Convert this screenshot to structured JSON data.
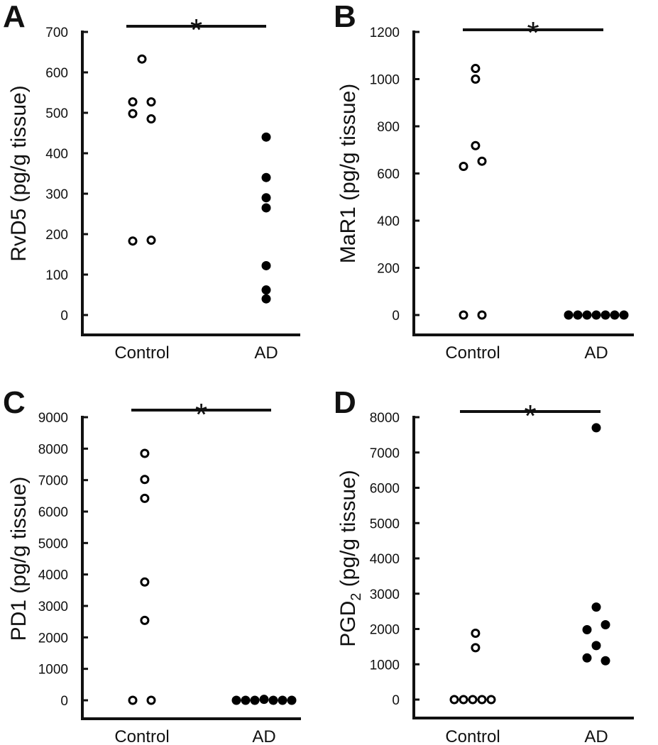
{
  "chart_data": [
    {
      "type": "scatter",
      "panel": "A",
      "ylabel": {
        "main": "RvD5 (pg/g tissue)",
        "sub": "",
        "tail": ""
      },
      "categories": [
        "Control",
        "AD"
      ],
      "ylim": [
        0,
        700
      ],
      "yticks": [
        0,
        100,
        200,
        300,
        400,
        500,
        600,
        700
      ],
      "significance": "*",
      "series": [
        {
          "name": "Control",
          "marker": "open",
          "points": [
            {
              "x": 0,
              "offset": 0,
              "y": 633
            },
            {
              "x": 0,
              "offset": -1,
              "y": 527
            },
            {
              "x": 0,
              "offset": 1,
              "y": 527
            },
            {
              "x": 0,
              "offset": -1,
              "y": 498
            },
            {
              "x": 0,
              "offset": 1,
              "y": 485
            },
            {
              "x": 0,
              "offset": -1,
              "y": 183
            },
            {
              "x": 0,
              "offset": 1,
              "y": 185
            }
          ]
        },
        {
          "name": "AD",
          "marker": "filled",
          "points": [
            {
              "x": 1,
              "offset": 0,
              "y": 440
            },
            {
              "x": 1,
              "offset": 0,
              "y": 340
            },
            {
              "x": 1,
              "offset": 0,
              "y": 290
            },
            {
              "x": 1,
              "offset": 0,
              "y": 265
            },
            {
              "x": 1,
              "offset": 0,
              "y": 122
            },
            {
              "x": 1,
              "offset": 0,
              "y": 62
            },
            {
              "x": 1,
              "offset": 0,
              "y": 40
            }
          ]
        }
      ]
    },
    {
      "type": "scatter",
      "panel": "B",
      "ylabel": {
        "main": "MaR1 (pg/g tissue)",
        "sub": "",
        "tail": ""
      },
      "categories": [
        "Control",
        "AD"
      ],
      "ylim": [
        0,
        1200
      ],
      "yticks": [
        0,
        200,
        400,
        600,
        800,
        1000,
        1200
      ],
      "significance": "*",
      "series": [
        {
          "name": "Control",
          "marker": "open",
          "points": [
            {
              "x": 0,
              "offset": 0.3,
              "y": 1045
            },
            {
              "x": 0,
              "offset": 0.3,
              "y": 1000
            },
            {
              "x": 0,
              "offset": 0.3,
              "y": 718
            },
            {
              "x": 0,
              "offset": 1,
              "y": 652
            },
            {
              "x": 0,
              "offset": -1,
              "y": 630
            },
            {
              "x": 0,
              "offset": -1,
              "y": 0
            },
            {
              "x": 0,
              "offset": 1,
              "y": 0
            }
          ]
        },
        {
          "name": "AD",
          "marker": "filled",
          "points": [
            {
              "x": 1,
              "offset": -3,
              "y": 0
            },
            {
              "x": 1,
              "offset": -2,
              "y": 0
            },
            {
              "x": 1,
              "offset": -1,
              "y": 0
            },
            {
              "x": 1,
              "offset": 0,
              "y": 0
            },
            {
              "x": 1,
              "offset": 1,
              "y": 0
            },
            {
              "x": 1,
              "offset": 2,
              "y": 0
            },
            {
              "x": 1,
              "offset": 3,
              "y": 0
            }
          ]
        }
      ]
    },
    {
      "type": "scatter",
      "panel": "C",
      "ylabel": {
        "main": "PD1 (pg/g tissue)",
        "sub": "",
        "tail": ""
      },
      "categories": [
        "Control",
        "AD"
      ],
      "ylim": [
        0,
        9000
      ],
      "yticks": [
        0,
        1000,
        2000,
        3000,
        4000,
        5000,
        6000,
        7000,
        8000,
        9000
      ],
      "significance": "*",
      "series": [
        {
          "name": "Control",
          "marker": "open",
          "points": [
            {
              "x": 0,
              "offset": 0.3,
              "y": 7850
            },
            {
              "x": 0,
              "offset": 0.3,
              "y": 7020
            },
            {
              "x": 0,
              "offset": 0.3,
              "y": 6420
            },
            {
              "x": 0,
              "offset": 0.3,
              "y": 3760
            },
            {
              "x": 0,
              "offset": 0.3,
              "y": 2540
            },
            {
              "x": 0,
              "offset": -1,
              "y": 0
            },
            {
              "x": 0,
              "offset": 1,
              "y": 0
            }
          ]
        },
        {
          "name": "AD",
          "marker": "filled",
          "points": [
            {
              "x": 1,
              "offset": -3,
              "y": 0
            },
            {
              "x": 1,
              "offset": -2,
              "y": 0
            },
            {
              "x": 1,
              "offset": -1,
              "y": 0
            },
            {
              "x": 1,
              "offset": 0,
              "y": 30
            },
            {
              "x": 1,
              "offset": 1,
              "y": 0
            },
            {
              "x": 1,
              "offset": 2,
              "y": 0
            },
            {
              "x": 1,
              "offset": 3,
              "y": 0
            }
          ]
        }
      ]
    },
    {
      "type": "scatter",
      "panel": "D",
      "ylabel": {
        "main": "PGD",
        "sub": "2",
        "tail": " (pg/g tissue)"
      },
      "categories": [
        "Control",
        "AD"
      ],
      "ylim": [
        0,
        8000
      ],
      "yticks": [
        0,
        1000,
        2000,
        3000,
        4000,
        5000,
        6000,
        7000,
        8000
      ],
      "significance": "*",
      "series": [
        {
          "name": "Control",
          "marker": "open",
          "points": [
            {
              "x": 0,
              "offset": 0.3,
              "y": 1880
            },
            {
              "x": 0,
              "offset": 0.3,
              "y": 1470
            },
            {
              "x": 0,
              "offset": -2,
              "y": 0
            },
            {
              "x": 0,
              "offset": -1,
              "y": 0
            },
            {
              "x": 0,
              "offset": 0,
              "y": 0
            },
            {
              "x": 0,
              "offset": 1,
              "y": 0
            },
            {
              "x": 0,
              "offset": 2,
              "y": 0
            }
          ]
        },
        {
          "name": "AD",
          "marker": "filled",
          "points": [
            {
              "x": 1,
              "offset": 0,
              "y": 7700
            },
            {
              "x": 1,
              "offset": 0,
              "y": 2620
            },
            {
              "x": 1,
              "offset": 1,
              "y": 2120
            },
            {
              "x": 1,
              "offset": -1,
              "y": 1980
            },
            {
              "x": 1,
              "offset": 0,
              "y": 1530
            },
            {
              "x": 1,
              "offset": -1,
              "y": 1180
            },
            {
              "x": 1,
              "offset": 1,
              "y": 1100
            }
          ]
        }
      ]
    }
  ]
}
